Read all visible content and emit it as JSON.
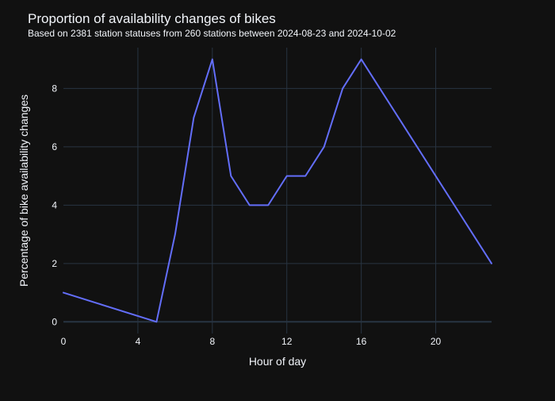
{
  "chart_data": {
    "type": "line",
    "title": "Proportion of availability changes of bikes",
    "subtitle": "Based on 2381 station statuses from 260 stations between 2024-08-23 and 2024-10-02",
    "xlabel": "Hour of day",
    "ylabel": "Percentage of bike availability changes",
    "xlim": [
      0,
      23
    ],
    "ylim": [
      -0.4,
      9.4
    ],
    "xticks": [
      0,
      4,
      8,
      12,
      16,
      20
    ],
    "yticks": [
      0,
      2,
      4,
      6,
      8
    ],
    "grid": true,
    "series": [
      {
        "color": "#636efa",
        "x": [
          0,
          5,
          6,
          7,
          8,
          9,
          10,
          11,
          12,
          13,
          14,
          15,
          16,
          23
        ],
        "y": [
          1,
          0,
          3,
          7,
          9,
          5,
          4,
          4,
          5,
          5,
          6,
          8,
          9,
          2
        ]
      }
    ]
  },
  "colors": {
    "background": "#111111",
    "grid": "#283442",
    "text": "#f2f5fa",
    "line": "#636efa"
  }
}
